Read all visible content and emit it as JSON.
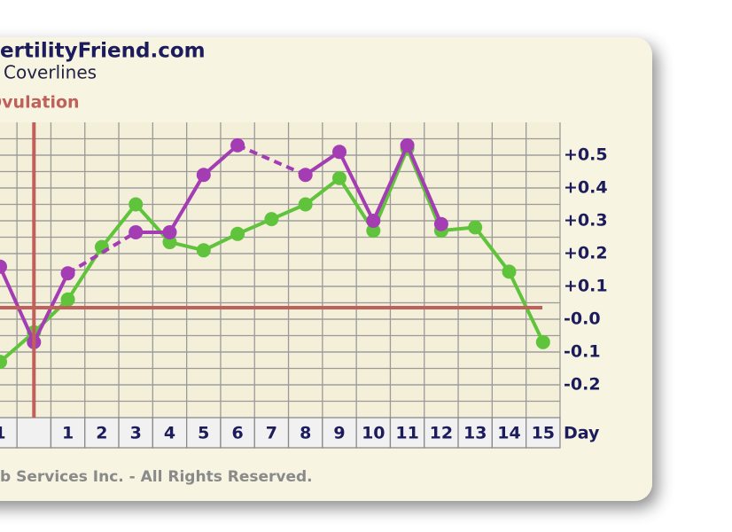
{
  "brand": "ertilityFriend.com",
  "chart_data": {
    "type": "line",
    "title": "Coverlines",
    "annotation": "Ovulation",
    "x_axis_label": "Day",
    "categories": [
      "1",
      null,
      "1",
      "2",
      "3",
      "4",
      "5",
      "6",
      "7",
      "8",
      "9",
      "10",
      "11",
      "12",
      "13",
      "14",
      "15"
    ],
    "series": [
      {
        "color": "#5fc43c",
        "values": [
          -0.13,
          -0.04,
          0.06,
          0.22,
          0.35,
          0.235,
          0.21,
          0.26,
          0.305,
          0.35,
          0.43,
          0.27,
          0.52,
          0.27,
          0.28,
          0.145,
          -0.07
        ]
      },
      {
        "color": "#a43cb4",
        "values": [
          0.16,
          -0.07,
          0.14,
          null,
          0.265,
          0.265,
          0.44,
          0.53,
          null,
          0.44,
          0.51,
          0.3,
          0.53,
          0.29,
          null,
          null,
          null
        ]
      }
    ],
    "coverline": 0.035,
    "ylim": [
      -0.3,
      0.6
    ],
    "yticks": [
      {
        "value": 0.5,
        "label": "+0.5"
      },
      {
        "value": 0.4,
        "label": "+0.4"
      },
      {
        "value": 0.3,
        "label": "+0.3"
      },
      {
        "value": 0.2,
        "label": "+0.2"
      },
      {
        "value": 0.1,
        "label": "+0.1"
      },
      {
        "value": 0,
        "label": "-0.0"
      },
      {
        "value": -0.1,
        "label": "-0.1"
      },
      {
        "value": -0.2,
        "label": "-0.2"
      }
    ],
    "grid": true
  },
  "footer": "b Services Inc. - All Rights Reserved."
}
